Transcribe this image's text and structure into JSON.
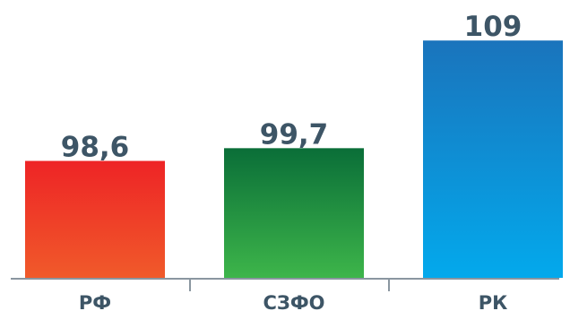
{
  "chart_data": {
    "type": "bar",
    "categories": [
      "РФ",
      "СЗФО",
      "РК"
    ],
    "values": [
      98.6,
      99.7,
      109
    ],
    "value_labels": [
      "98,6",
      "99,7",
      "109"
    ],
    "title": "",
    "xlabel": "",
    "ylabel": "",
    "ylim": [
      88.5,
      112.5
    ],
    "grid": false,
    "legend": "none",
    "bar_gradients": [
      [
        "#ee2426",
        "#f05a2a"
      ],
      [
        "#0a6e38",
        "#3db54a"
      ],
      [
        "#1a74bc",
        "#03a9ec"
      ]
    ],
    "axis_color": "#8a96a0",
    "label_color": "#3d5566"
  }
}
